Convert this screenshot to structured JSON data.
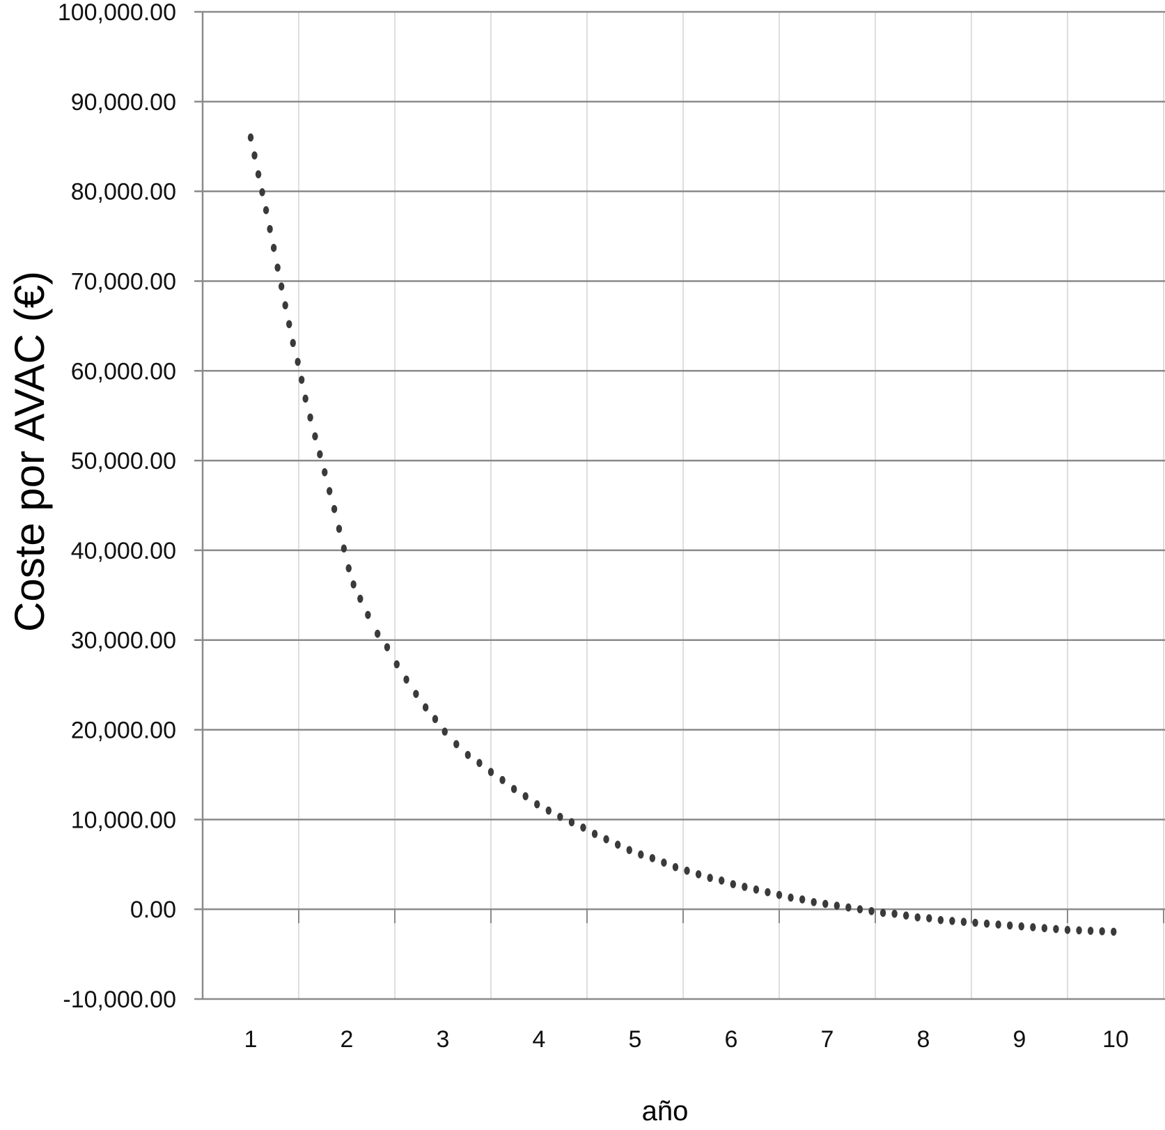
{
  "chart_data": {
    "type": "scatter",
    "title": "",
    "xlabel": "año",
    "ylabel": "Coste por AVAC (€)",
    "xlim": [
      0.5,
      10.5
    ],
    "ylim": [
      -10000,
      100000
    ],
    "x_categories": [
      "1",
      "2",
      "3",
      "4",
      "5",
      "6",
      "7",
      "8",
      "9",
      "10"
    ],
    "y_tick_labels": [
      "100,000.00",
      "90,000.00",
      "80,000.00",
      "70,000.00",
      "60,000.00",
      "50,000.00",
      "40,000.00",
      "30,000.00",
      "20,000.00",
      "10,000.00",
      "0.00",
      "-10,000.00"
    ],
    "y_tick_values": [
      100000,
      90000,
      80000,
      70000,
      60000,
      50000,
      40000,
      30000,
      20000,
      10000,
      0,
      -10000
    ],
    "grid": true,
    "legend": "none",
    "series": [
      {
        "marker_color": "#3a3a3a",
        "points": [
          [
            1.0,
            86000
          ],
          [
            1.04,
            84000
          ],
          [
            1.08,
            81900
          ],
          [
            1.12,
            79900
          ],
          [
            1.16,
            77900
          ],
          [
            1.2,
            75800
          ],
          [
            1.24,
            73700
          ],
          [
            1.28,
            71500
          ],
          [
            1.32,
            69400
          ],
          [
            1.36,
            67300
          ],
          [
            1.4,
            65200
          ],
          [
            1.44,
            63100
          ],
          [
            1.49,
            61000
          ],
          [
            1.53,
            59000
          ],
          [
            1.57,
            56900
          ],
          [
            1.62,
            54800
          ],
          [
            1.67,
            52700
          ],
          [
            1.72,
            50700
          ],
          [
            1.77,
            48700
          ],
          [
            1.82,
            46600
          ],
          [
            1.87,
            44600
          ],
          [
            1.92,
            42400
          ],
          [
            1.97,
            40200
          ],
          [
            2.02,
            38000
          ],
          [
            2.07,
            36200
          ],
          [
            2.14,
            34600
          ],
          [
            2.22,
            32800
          ],
          [
            2.32,
            30700
          ],
          [
            2.42,
            29200
          ],
          [
            2.52,
            27300
          ],
          [
            2.62,
            25600
          ],
          [
            2.72,
            24000
          ],
          [
            2.82,
            22500
          ],
          [
            2.92,
            21200
          ],
          [
            3.02,
            19800
          ],
          [
            3.14,
            18400
          ],
          [
            3.26,
            17200
          ],
          [
            3.38,
            16300
          ],
          [
            3.5,
            15300
          ],
          [
            3.62,
            14400
          ],
          [
            3.74,
            13400
          ],
          [
            3.86,
            12600
          ],
          [
            3.98,
            11700
          ],
          [
            4.1,
            11000
          ],
          [
            4.22,
            10300
          ],
          [
            4.34,
            9700
          ],
          [
            4.46,
            9100
          ],
          [
            4.58,
            8400
          ],
          [
            4.7,
            7800
          ],
          [
            4.82,
            7200
          ],
          [
            4.94,
            6600
          ],
          [
            5.06,
            6100
          ],
          [
            5.18,
            5700
          ],
          [
            5.3,
            5200
          ],
          [
            5.42,
            4700
          ],
          [
            5.54,
            4300
          ],
          [
            5.66,
            3900
          ],
          [
            5.78,
            3500
          ],
          [
            5.9,
            3200
          ],
          [
            6.02,
            2800
          ],
          [
            6.14,
            2500
          ],
          [
            6.26,
            2200
          ],
          [
            6.38,
            1900
          ],
          [
            6.5,
            1600
          ],
          [
            6.62,
            1300
          ],
          [
            6.74,
            1100
          ],
          [
            6.86,
            800
          ],
          [
            6.98,
            600
          ],
          [
            7.1,
            400
          ],
          [
            7.22,
            200
          ],
          [
            7.34,
            0
          ],
          [
            7.46,
            -200
          ],
          [
            7.58,
            -400
          ],
          [
            7.7,
            -500
          ],
          [
            7.82,
            -700
          ],
          [
            7.94,
            -900
          ],
          [
            8.06,
            -1000
          ],
          [
            8.18,
            -1200
          ],
          [
            8.3,
            -1300
          ],
          [
            8.42,
            -1400
          ],
          [
            8.54,
            -1500
          ],
          [
            8.66,
            -1600
          ],
          [
            8.78,
            -1700
          ],
          [
            8.9,
            -1800
          ],
          [
            9.02,
            -1900
          ],
          [
            9.14,
            -2000
          ],
          [
            9.26,
            -2100
          ],
          [
            9.38,
            -2200
          ],
          [
            9.5,
            -2300
          ],
          [
            9.62,
            -2350
          ],
          [
            9.74,
            -2400
          ],
          [
            9.86,
            -2450
          ],
          [
            9.98,
            -2500
          ]
        ]
      }
    ]
  }
}
